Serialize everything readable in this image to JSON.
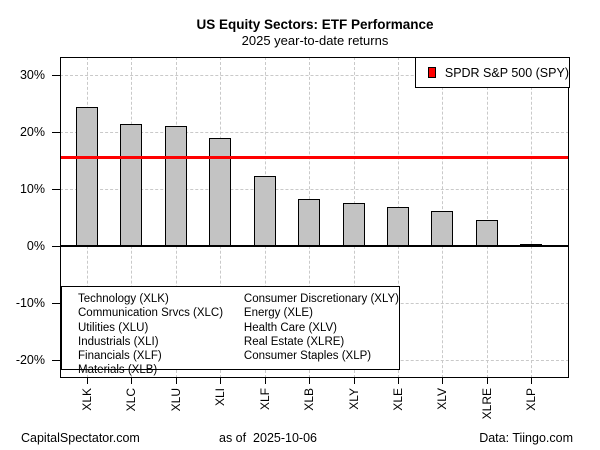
{
  "chart_data": {
    "type": "bar",
    "title": "US Equity Sectors: ETF Performance",
    "subtitle": "2025 year-to-date returns",
    "categories": [
      "XLK",
      "XLC",
      "XLU",
      "XLI",
      "XLF",
      "XLB",
      "XLY",
      "XLE",
      "XLV",
      "XLRE",
      "XLP"
    ],
    "values": [
      24.4,
      21.4,
      21.0,
      18.9,
      12.3,
      8.2,
      7.6,
      6.9,
      6.1,
      4.6,
      0.4
    ],
    "ylabel": "",
    "xlabel": "",
    "ylim": [
      -23,
      33
    ],
    "yticks": [
      30,
      20,
      10,
      0,
      -10,
      -20
    ],
    "ytick_labels": [
      "30%",
      "20%",
      "10%",
      "0%",
      "-10%",
      "-20%"
    ],
    "grid": "dashed horizontal and vertical, none at zero",
    "zero_line": 0,
    "bar_color": "#c3c3c3",
    "bar_border_color": "#000000",
    "grid_color": "#c9c9c9",
    "reference_line": {
      "label": "SPDR S&P 500 (SPY)",
      "value": 15.6,
      "color": "#ff0000"
    },
    "legend_position": "top-right"
  },
  "sector_key": {
    "col1": [
      "Technology (XLK)",
      "Communication Srvcs (XLC)",
      "Utilities (XLU)",
      "Industrials (XLI)",
      "Financials (XLF)",
      "Materials (XLB)"
    ],
    "col2": [
      "Consumer Discretionary (XLY)",
      "Energy (XLE)",
      "Health Care (XLV)",
      "Real Estate (XLRE)",
      "Consumer Staples (XLP)"
    ]
  },
  "footer": {
    "left": "CapitalSpectator.com",
    "center": "as of  2025-10-06",
    "right": "Data: Tiingo.com"
  }
}
